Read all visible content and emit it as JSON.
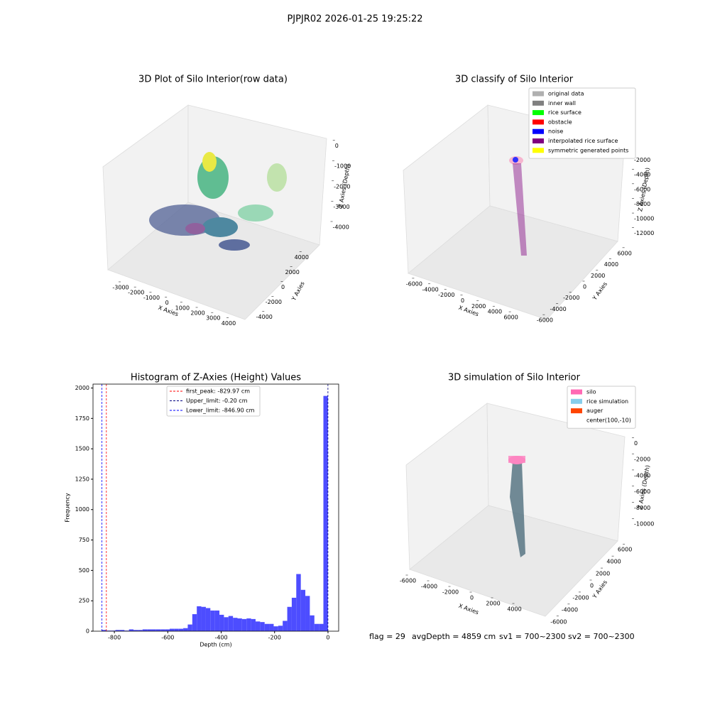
{
  "title": "PJPJR02 2026-01-25 19:25:22",
  "chart_data": [
    {
      "type": "scatter3d",
      "title": "3D Plot of Silo Interior(row data)",
      "xlabel": "X Axies",
      "ylabel": "Y Axies",
      "zlabel": "Z Axies (Depth)",
      "xlim": [
        -3830,
        5060
      ],
      "xticks": [
        -3000,
        -2000,
        -1000,
        0,
        1000,
        2000,
        3000,
        4000
      ],
      "ylim": [
        -4800,
        4800
      ],
      "yticks": [
        -4000,
        -2000,
        0,
        2000,
        4000
      ],
      "zlim": [
        -4700,
        300
      ],
      "zticks": [
        0,
        -1000,
        -2000,
        -3000,
        -4000
      ]
    },
    {
      "type": "scatter3d",
      "title": "3D classify of Silo Interior",
      "xlabel": "X Axies",
      "ylabel": "Y Axies",
      "zlabel": "Z Axies (Depth)",
      "xlim": [
        -7000,
        7000
      ],
      "xticks": [
        -6000,
        -4000,
        -2000,
        0,
        2000,
        4000,
        6000
      ],
      "ylim": [
        -7000,
        7000
      ],
      "yticks": [
        -6000,
        -4000,
        -2000,
        0,
        2000,
        4000,
        6000
      ],
      "zlim": [
        -13000,
        0
      ],
      "zticks": [
        -2000,
        -4000,
        -6000,
        -8000,
        -10000,
        -12000
      ],
      "legend": [
        {
          "name": "original data",
          "color": "#b0b0b0"
        },
        {
          "name": "inner wall",
          "color": "#808080"
        },
        {
          "name": "rice surface",
          "color": "#00ff00"
        },
        {
          "name": "obstacle",
          "color": "#ff0000"
        },
        {
          "name": "noise",
          "color": "#0000ff"
        },
        {
          "name": "interpolated rice surface",
          "color": "#800080"
        },
        {
          "name": "symmetric generated points",
          "color": "#ffff00"
        }
      ]
    },
    {
      "type": "histogram",
      "title": "Histogram of Z-Axies (Height) Values",
      "xlabel": "Depth (cm)",
      "ylabel": "Frequency",
      "color": "#4d4dff",
      "bins": [
        -846.9,
        -830.0,
        -813.0,
        -796.1,
        -779.2,
        -762.2,
        -745.3,
        -728.4,
        -711.4,
        -694.5,
        -677.6,
        -660.6,
        -643.7,
        -626.8,
        -609.8,
        -592.9,
        -576.0,
        -559.0,
        -542.1,
        -525.2,
        -508.2,
        -491.3,
        -474.4,
        -457.4,
        -440.5,
        -423.6,
        -406.6,
        -389.7,
        -372.8,
        -355.8,
        -338.9,
        -322.0,
        -305.0,
        -288.1,
        -271.2,
        -254.2,
        -237.3,
        -220.4,
        -203.4,
        -186.5,
        -169.6,
        -152.6,
        -135.7,
        -118.8,
        -101.8,
        -84.9,
        -68.0,
        -51.0,
        -34.1,
        -17.2,
        -0.2
      ],
      "values": [
        10,
        5,
        5,
        10,
        10,
        5,
        15,
        10,
        10,
        15,
        15,
        15,
        15,
        15,
        15,
        20,
        20,
        20,
        25,
        55,
        140,
        205,
        200,
        190,
        170,
        170,
        135,
        115,
        125,
        110,
        105,
        100,
        105,
        100,
        80,
        75,
        60,
        60,
        40,
        45,
        85,
        200,
        275,
        470,
        340,
        290,
        130,
        60,
        60,
        1935
      ],
      "xlim": [
        -880,
        40
      ],
      "xticks": [
        -800,
        -600,
        -400,
        -200,
        0
      ],
      "ylim": [
        0,
        2032
      ],
      "yticks": [
        0,
        250,
        500,
        750,
        1000,
        1250,
        1500,
        1750,
        2000
      ],
      "lines": [
        {
          "name": "first_peak: -829.97 cm",
          "value": -829.97,
          "color": "#ff0000"
        },
        {
          "name": "Upper_limit: -0.20 cm",
          "value": -0.2,
          "color": "#000080"
        },
        {
          "name": "Lower_limit: -846.90 cm",
          "value": -846.9,
          "color": "#0000ff"
        }
      ]
    },
    {
      "type": "scatter3d",
      "title": "3D simulation of Silo Interior",
      "xlabel": "X Axies",
      "ylabel": "Y Axies",
      "zlabel": "Z Axies (Depth)",
      "xlim": [
        -6500,
        6500
      ],
      "xticks": [
        -6000,
        -4000,
        -2000,
        0,
        2000,
        4000
      ],
      "ylim": [
        -6500,
        6500
      ],
      "yticks": [
        -6000,
        -4000,
        -2000,
        0,
        2000,
        4000,
        6000
      ],
      "zlim": [
        -12000,
        1000
      ],
      "zticks": [
        0,
        -2000,
        -4000,
        -6000,
        -8000,
        -10000
      ],
      "legend": [
        {
          "name": "silo",
          "color": "#ff69b4"
        },
        {
          "name": "rice simulation",
          "color": "#87ceeb"
        },
        {
          "name": "auger",
          "color": "#ff4500"
        },
        {
          "name": "center(100,-10)",
          "color": null
        }
      ]
    }
  ],
  "footer": [
    "flag = 29",
    "avgDepth = 4859 cm",
    "sv1 = 700~2300",
    "sv2 = 700~2300"
  ]
}
